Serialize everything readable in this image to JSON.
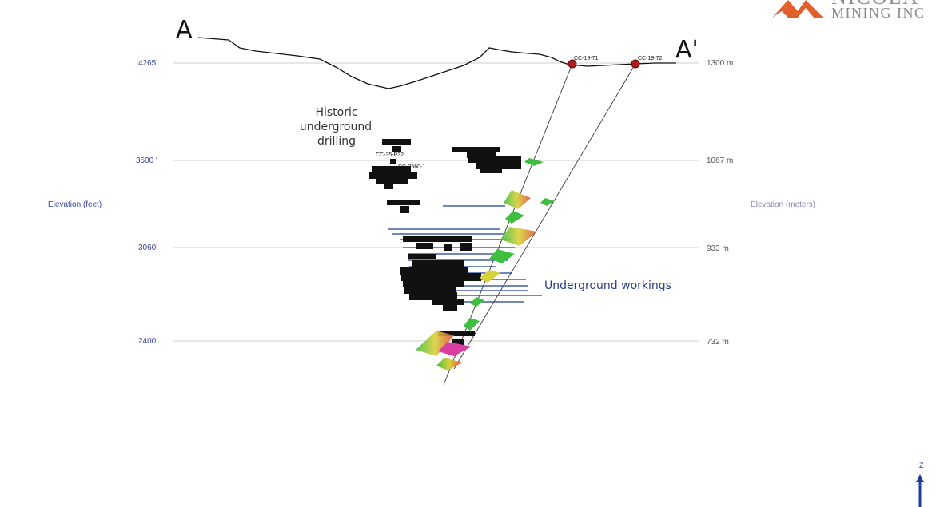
{
  "section": {
    "start_label": "A",
    "end_label": "A'"
  },
  "logo": {
    "text": "NICOLA",
    "subtitle": "MINING INC"
  },
  "axes": {
    "left_title": "Elevation (feet)",
    "right_title": "Elevation (meters)",
    "levels": [
      {
        "feet": "4265'",
        "meters": "1300 m"
      },
      {
        "feet": "3500 '",
        "meters": "1067 m"
      },
      {
        "feet": "3060'",
        "meters": "933 m"
      },
      {
        "feet": "2400'",
        "meters": "732 m"
      }
    ]
  },
  "annotations": {
    "historic": [
      "Historic",
      "underground",
      "drilling"
    ],
    "workings": "Underground workings"
  },
  "drillholes": [
    {
      "id": "CC-19-71"
    },
    {
      "id": "CC-19-72"
    }
  ],
  "historic_labels": [
    "CC-35-P32",
    "CC-3560-1"
  ],
  "orientation": {
    "axis": "Z"
  },
  "colors": {
    "axis_text": "#3a44a0",
    "grid": "#cfcfcf",
    "workings": "#1f3c9a",
    "collar": "#b31b1b",
    "logo": "#e1602c",
    "logo_text": "#8a8a8a"
  }
}
